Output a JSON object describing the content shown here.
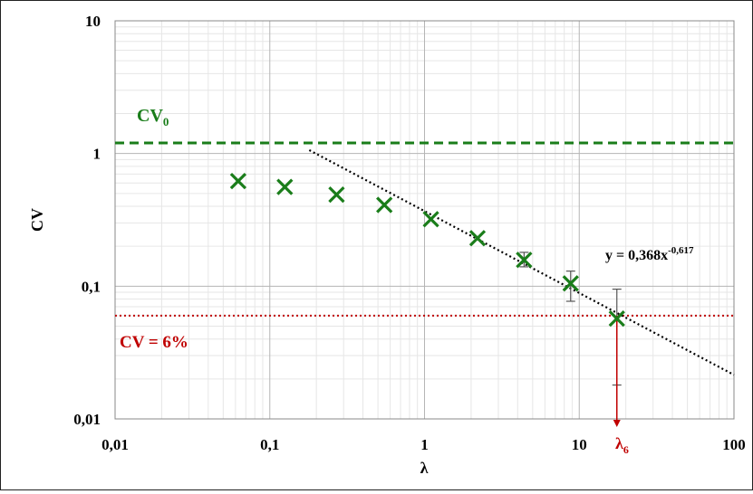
{
  "chart_data": {
    "type": "scatter",
    "x_scale": "log",
    "y_scale": "log",
    "xlim": [
      0.01,
      100
    ],
    "ylim": [
      0.01,
      10
    ],
    "xlabel": "λ",
    "ylabel": "CV",
    "x_ticks": [
      0.01,
      0.1,
      1,
      10,
      100
    ],
    "x_tick_labels": [
      "0,01",
      "0,1",
      "1",
      "10",
      "100"
    ],
    "y_ticks": [
      0.01,
      0.1,
      1,
      10
    ],
    "y_tick_labels": [
      "0,01",
      "0,1",
      "1",
      "10"
    ],
    "grid": true,
    "points": [
      {
        "x": 0.0625,
        "y": 0.62
      },
      {
        "x": 0.125,
        "y": 0.56
      },
      {
        "x": 0.27,
        "y": 0.49
      },
      {
        "x": 0.55,
        "y": 0.41
      },
      {
        "x": 1.1,
        "y": 0.32
      },
      {
        "x": 2.2,
        "y": 0.23
      },
      {
        "x": 4.4,
        "y": 0.158,
        "err_low": 0.14,
        "err_high": 0.18
      },
      {
        "x": 8.8,
        "y": 0.105,
        "err_low": 0.077,
        "err_high": 0.13
      },
      {
        "x": 17.5,
        "y": 0.057,
        "err_low": 0.018,
        "err_high": 0.095
      }
    ],
    "point_color": "#1a7d1a",
    "trendline": {
      "a": 0.368,
      "b": -0.617,
      "x_from": 0.18,
      "x_to": 100,
      "color": "#000000"
    },
    "equation": {
      "prefix": "y = 0,368x",
      "exponent": "-0,617"
    },
    "cv0_line": {
      "y": 1.2,
      "color": "#1a7d1a",
      "label_main": "CV",
      "label_sub": "0"
    },
    "cv6_line": {
      "y": 0.06,
      "color": "#c00000",
      "label": "CV = 6%"
    },
    "lambda_marker": {
      "x": 17.5,
      "label_main": "λ",
      "label_sub": "6",
      "color": "#c00000"
    }
  }
}
